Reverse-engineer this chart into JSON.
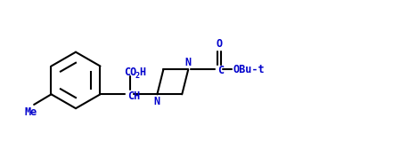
{
  "bg_color": "#ffffff",
  "line_color": "#000000",
  "text_color": "#0000cc",
  "figsize": [
    4.41,
    1.77
  ],
  "dpi": 100,
  "bond_lw": 1.5,
  "font_size": 8.5,
  "xlim": [
    0,
    11
  ],
  "ylim": [
    0,
    4.5
  ]
}
